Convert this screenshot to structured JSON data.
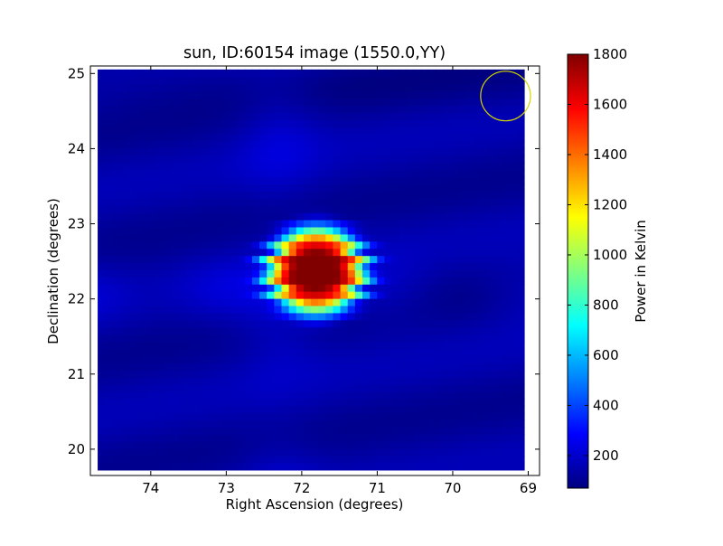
{
  "chart_data": {
    "type": "heatmap",
    "title": "sun, ID:60154 image (1550.0,YY)",
    "xlabel": "Right Ascension (degrees)",
    "ylabel": "Declination (degrees)",
    "xlim": [
      74.8,
      68.85
    ],
    "ylim": [
      19.65,
      25.1
    ],
    "x_ticks": [
      74,
      73,
      72,
      71,
      70,
      69
    ],
    "y_ticks": [
      20,
      21,
      22,
      23,
      24,
      25
    ],
    "x_inverted": true,
    "grid": false,
    "colormap": "jet",
    "colorbar": {
      "label": "Power in Kelvin",
      "range": [
        70,
        1800
      ],
      "ticks": [
        200,
        400,
        600,
        800,
        1000,
        1200,
        1400,
        1600,
        1800
      ]
    },
    "map_extent": {
      "ra": [
        74.7,
        69.05
      ],
      "dec": [
        19.72,
        25.05
      ]
    },
    "background_level": 130,
    "sources": [
      {
        "name": "sun",
        "ra": 71.8,
        "dec": 22.38,
        "peak": 1800,
        "width_ra": 0.62,
        "width_dec": 0.56
      }
    ],
    "ripple": {
      "axis": "dec",
      "period_deg": 0.16,
      "amplitude_deg": 0.1
    },
    "beam": {
      "ra": 69.3,
      "dec": 24.7,
      "radius_deg": 0.33,
      "color": "#d4d400"
    }
  }
}
